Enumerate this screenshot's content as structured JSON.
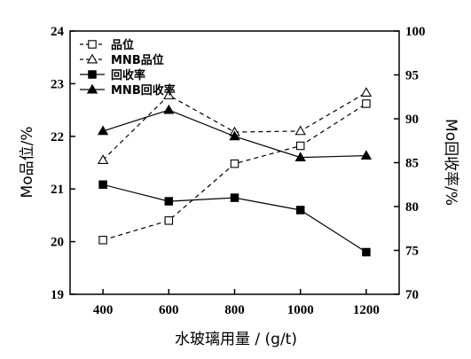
{
  "chart_data": {
    "type": "line",
    "x": [
      400,
      600,
      800,
      1000,
      1200
    ],
    "xlabel": "水玻璃用量 / (g/t)",
    "xlim": [
      300,
      1300
    ],
    "x_ticks": [
      "400",
      "600",
      "800",
      "1000",
      "1200"
    ],
    "y_left": {
      "label": "Mo品位/%",
      "lim": [
        19,
        24
      ],
      "ticks": [
        "19",
        "20",
        "21",
        "22",
        "23",
        "24"
      ]
    },
    "y_right": {
      "label": "Mo回收率/%",
      "lim": [
        70,
        100
      ],
      "ticks": [
        "70",
        "75",
        "80",
        "85",
        "90",
        "95",
        "100"
      ]
    },
    "grid": false,
    "legend_position": "top-left",
    "series": [
      {
        "name": "品位",
        "axis": "left",
        "line": "dashed",
        "marker": "square-open",
        "values": [
          20.03,
          20.4,
          21.48,
          21.82,
          22.62
        ]
      },
      {
        "name": "MNB品位",
        "axis": "left",
        "line": "dashed",
        "marker": "triangle-open",
        "values": [
          21.55,
          22.78,
          22.08,
          22.1,
          22.83
        ]
      },
      {
        "name": "回收率",
        "axis": "right",
        "line": "solid",
        "marker": "square-filled",
        "values": [
          82.5,
          80.6,
          81.0,
          79.6,
          74.8
        ]
      },
      {
        "name": "MNB回收率",
        "axis": "right",
        "line": "solid",
        "marker": "triangle-filled",
        "values": [
          88.6,
          91.0,
          88.0,
          85.6,
          85.8
        ]
      }
    ]
  }
}
